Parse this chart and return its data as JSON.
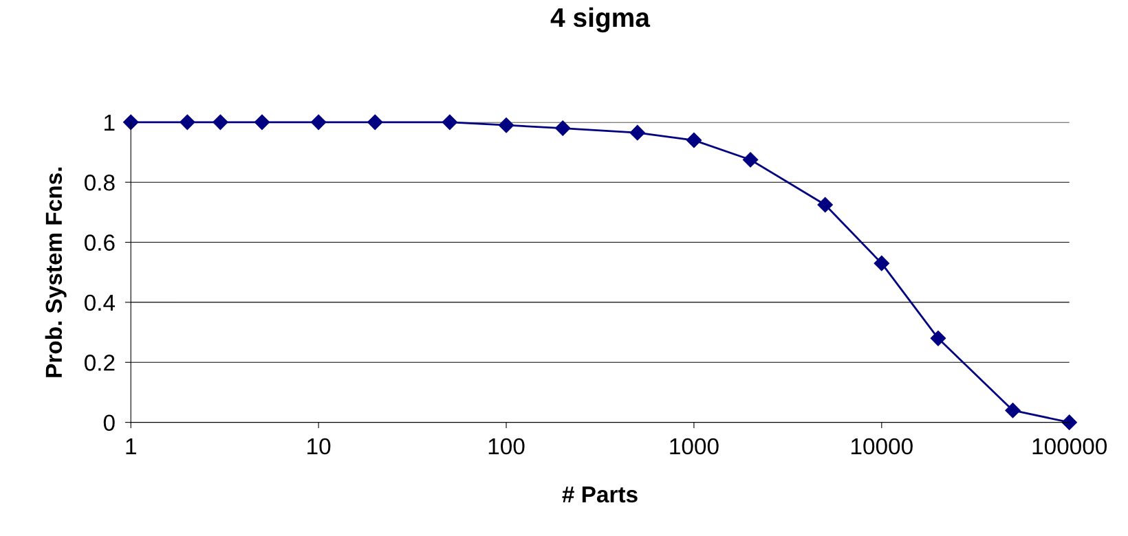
{
  "chart_data": {
    "type": "line",
    "title": "4 sigma",
    "xlabel": "# Parts",
    "ylabel": "Prob. System Fcns.",
    "x": [
      1,
      2,
      3,
      5,
      10,
      20,
      50,
      100,
      200,
      500,
      1000,
      2000,
      5000,
      10000,
      20000,
      50000,
      100000
    ],
    "series": [
      {
        "color": "#000080",
        "values": [
          1,
          1,
          1,
          1,
          1,
          1,
          1,
          0.99,
          0.98,
          0.965,
          0.94,
          0.875,
          0.725,
          0.53,
          0.28,
          0.04,
          0
        ]
      }
    ],
    "log": "x",
    "xlim": [
      1,
      100000
    ],
    "xticks": [
      1,
      10,
      100,
      1000,
      10000,
      100000
    ],
    "ylim": [
      0,
      1
    ],
    "yticks": [
      0,
      0.2,
      0.4,
      0.6,
      0.8,
      1
    ],
    "grid": "y",
    "marker": "diamond",
    "line_style": "solid"
  }
}
